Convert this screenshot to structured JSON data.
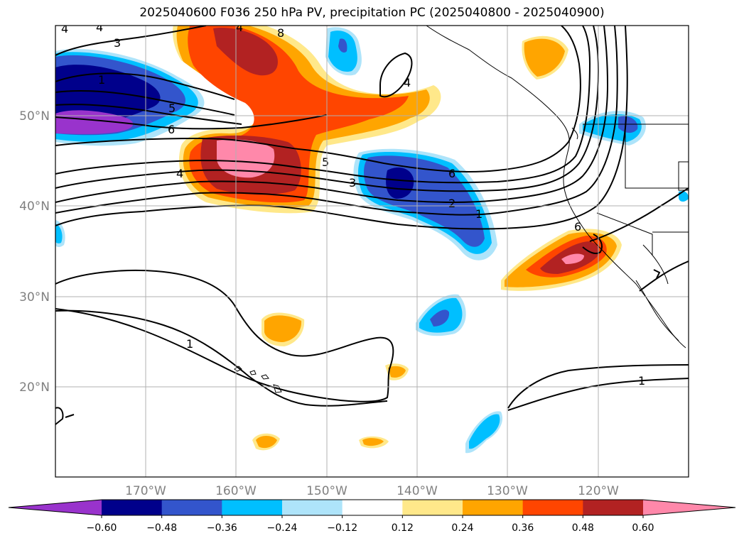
{
  "title": "2025040600 F036 250 hPa PV, precipitation PC (2025040800 - 2025040900)",
  "map": {
    "lat_labels": [
      "50°N",
      "40°N",
      "30°N",
      "20°N"
    ],
    "lon_labels": [
      "170°W",
      "160°W",
      "150°W",
      "140°W",
      "130°W",
      "120°W"
    ],
    "contour_labels": [
      "3",
      "4",
      "4",
      "4",
      "4",
      "8",
      "1",
      "5",
      "6",
      "4",
      "5",
      "3",
      "6",
      "2",
      "1",
      "1",
      "1",
      "6"
    ]
  },
  "colorbar": {
    "tick_labels": [
      "−0.60",
      "−0.48",
      "−0.36",
      "−0.24",
      "−0.12",
      "0.12",
      "0.24",
      "0.36",
      "0.48",
      "0.60"
    ],
    "colors": [
      "#9933cc",
      "#00008b",
      "#3355cc",
      "#00bfff",
      "#aee4fa",
      "#ffffff",
      "#ffe88a",
      "#ffa500",
      "#ff4500",
      "#b22222",
      "#ff88aa"
    ]
  }
}
